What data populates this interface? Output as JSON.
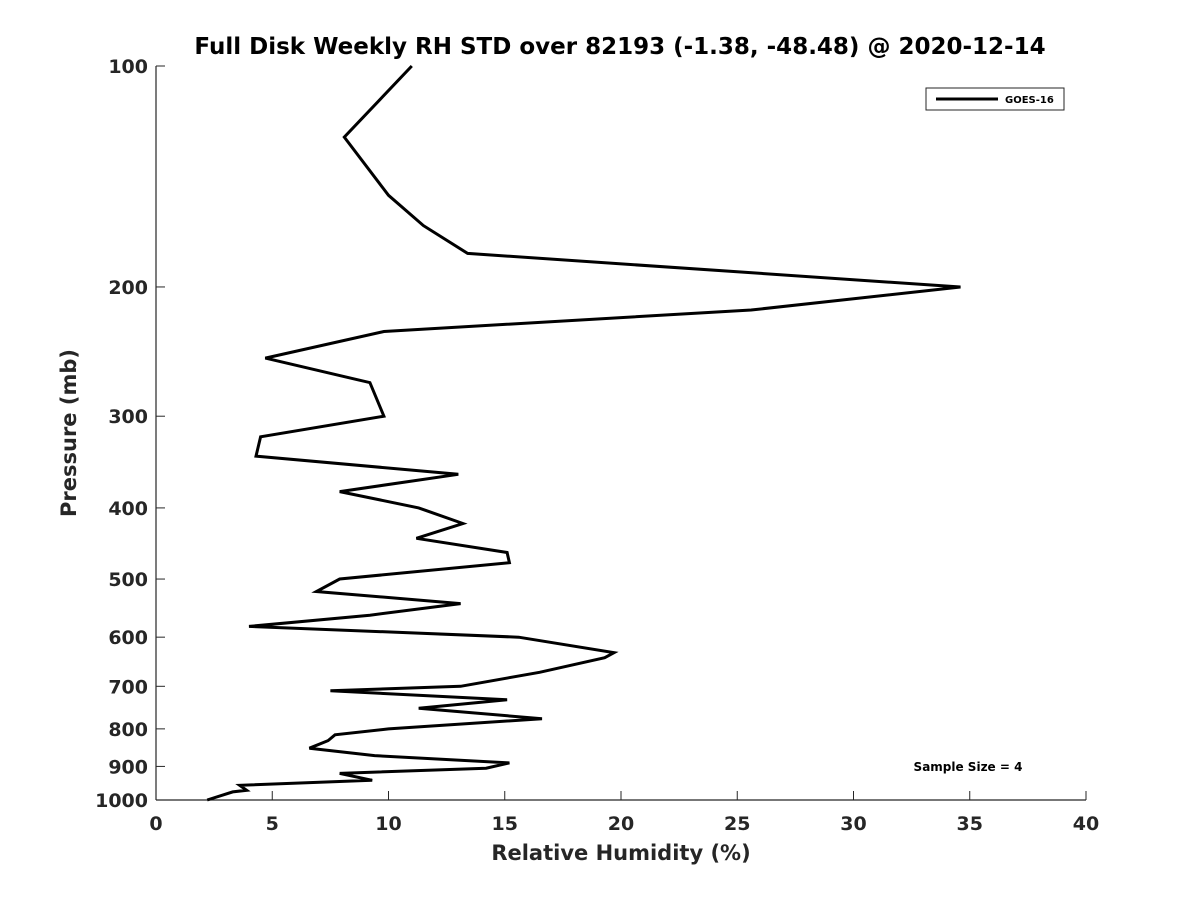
{
  "chart_data": {
    "type": "line",
    "title": "Full Disk Weekly RH STD over 82193 (-1.38, -48.48) @ 2020-12-14",
    "xlabel": "Relative Humidity (%)",
    "ylabel": "Pressure (mb)",
    "xlim": [
      0,
      40
    ],
    "ylim": [
      100,
      1000
    ],
    "y_scale": "log",
    "y_reversed": true,
    "x_ticks": [
      0,
      5,
      10,
      15,
      20,
      25,
      30,
      35,
      40
    ],
    "y_ticks": [
      100,
      200,
      300,
      400,
      500,
      600,
      700,
      800,
      900,
      1000
    ],
    "grid": false,
    "legend_position": "top-right",
    "annotation": "Sample Size = 4",
    "series": [
      {
        "name": "GOES-16",
        "color": "#000000",
        "points": [
          [
            11.0,
            100
          ],
          [
            8.1,
            125
          ],
          [
            10.0,
            150
          ],
          [
            11.5,
            165
          ],
          [
            13.4,
            180
          ],
          [
            34.6,
            200
          ],
          [
            25.6,
            215
          ],
          [
            9.8,
            230
          ],
          [
            4.7,
            250
          ],
          [
            9.2,
            270
          ],
          [
            9.8,
            300
          ],
          [
            4.5,
            320
          ],
          [
            4.3,
            340
          ],
          [
            13.0,
            360
          ],
          [
            7.9,
            380
          ],
          [
            11.3,
            400
          ],
          [
            13.2,
            420
          ],
          [
            11.2,
            440
          ],
          [
            15.1,
            460
          ],
          [
            15.2,
            475
          ],
          [
            7.9,
            500
          ],
          [
            6.9,
            520
          ],
          [
            13.1,
            540
          ],
          [
            9.2,
            560
          ],
          [
            4.0,
            580
          ],
          [
            15.6,
            600
          ],
          [
            19.7,
            630
          ],
          [
            19.3,
            640
          ],
          [
            16.5,
            670
          ],
          [
            13.1,
            700
          ],
          [
            7.5,
            710
          ],
          [
            15.1,
            730
          ],
          [
            11.3,
            750
          ],
          [
            16.6,
            775
          ],
          [
            10.0,
            800
          ],
          [
            7.7,
            815
          ],
          [
            7.4,
            830
          ],
          [
            6.6,
            850
          ],
          [
            9.4,
            870
          ],
          [
            15.2,
            890
          ],
          [
            14.2,
            905
          ],
          [
            7.9,
            920
          ],
          [
            9.3,
            940
          ],
          [
            3.6,
            955
          ],
          [
            3.9,
            970
          ],
          [
            3.3,
            975
          ],
          [
            2.2,
            1000
          ]
        ]
      }
    ]
  }
}
